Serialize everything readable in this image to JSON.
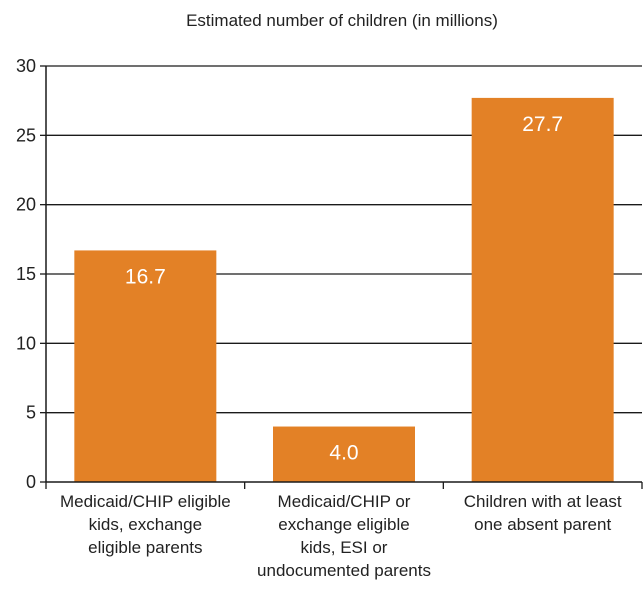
{
  "chart_data": {
    "type": "bar",
    "title": "Estimated number of children (in millions)",
    "xlabel": "",
    "ylabel": "",
    "ylim": [
      0,
      30
    ],
    "yticks": [
      0,
      5,
      10,
      15,
      20,
      25,
      30
    ],
    "grid": true,
    "legend": "none",
    "bar_color": "#E38126",
    "categories": [
      [
        "Medicaid/CHIP eligible",
        "kids, exchange",
        "eligible parents"
      ],
      [
        "Medicaid/CHIP or",
        "exchange eligible",
        "kids, ESI or",
        "undocumented parents"
      ],
      [
        "Children with at least",
        "one absent parent"
      ]
    ],
    "values": [
      16.7,
      4.0,
      27.7
    ],
    "value_labels": [
      "16.7",
      "4.0",
      "27.7"
    ]
  }
}
